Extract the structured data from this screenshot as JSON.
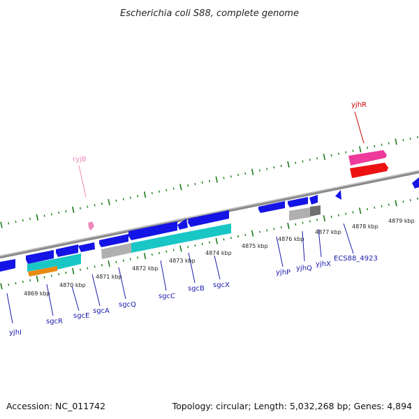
{
  "title": "Escherichia coli S88, complete genome",
  "footer": {
    "accession": "Accession: NC_011742",
    "summary": "Topology: circular; Length: 5,032,268 bp; Genes: 4,894"
  },
  "colors": {
    "backbone": "#8a8a8a",
    "tick": "#1a7a1a",
    "gene_blue": "#1414e6",
    "cds_cyan": "#19c6c6",
    "pseudo_grey": "#b0b0b0",
    "orange": "#e88a10",
    "rna_pink": "#ee3a9a",
    "red": "#ee1111",
    "label_blue": "#1a1aaa",
    "label_red": "#cc0000",
    "label_pink": "#ee88bb"
  },
  "position_labels": [
    "4869 kbp",
    "4870 kbp",
    "4871 kbp",
    "4872 kbp",
    "4873 kbp",
    "4874 kbp",
    "4875 kbp",
    "4876 kbp",
    "4877 kbp",
    "4878 kbp",
    "4879 kbp"
  ],
  "gene_labels": [
    {
      "text": "yjhI",
      "color": "label_blue"
    },
    {
      "text": "sgcR",
      "color": "label_blue"
    },
    {
      "text": "sgcE",
      "color": "label_blue"
    },
    {
      "text": "sgcA",
      "color": "label_blue"
    },
    {
      "text": "sgcQ",
      "color": "label_blue"
    },
    {
      "text": "sgcC",
      "color": "label_blue"
    },
    {
      "text": "sgcB",
      "color": "label_blue"
    },
    {
      "text": "sgcX",
      "color": "label_blue"
    },
    {
      "text": "yjhP",
      "color": "label_blue"
    },
    {
      "text": "yjhQ",
      "color": "label_blue"
    },
    {
      "text": "yjhX",
      "color": "label_blue"
    },
    {
      "text": "ECS88_4923",
      "color": "label_blue"
    },
    {
      "text": "yjhR",
      "color": "label_red"
    },
    {
      "text": "ryjB",
      "color": "label_pink"
    }
  ]
}
